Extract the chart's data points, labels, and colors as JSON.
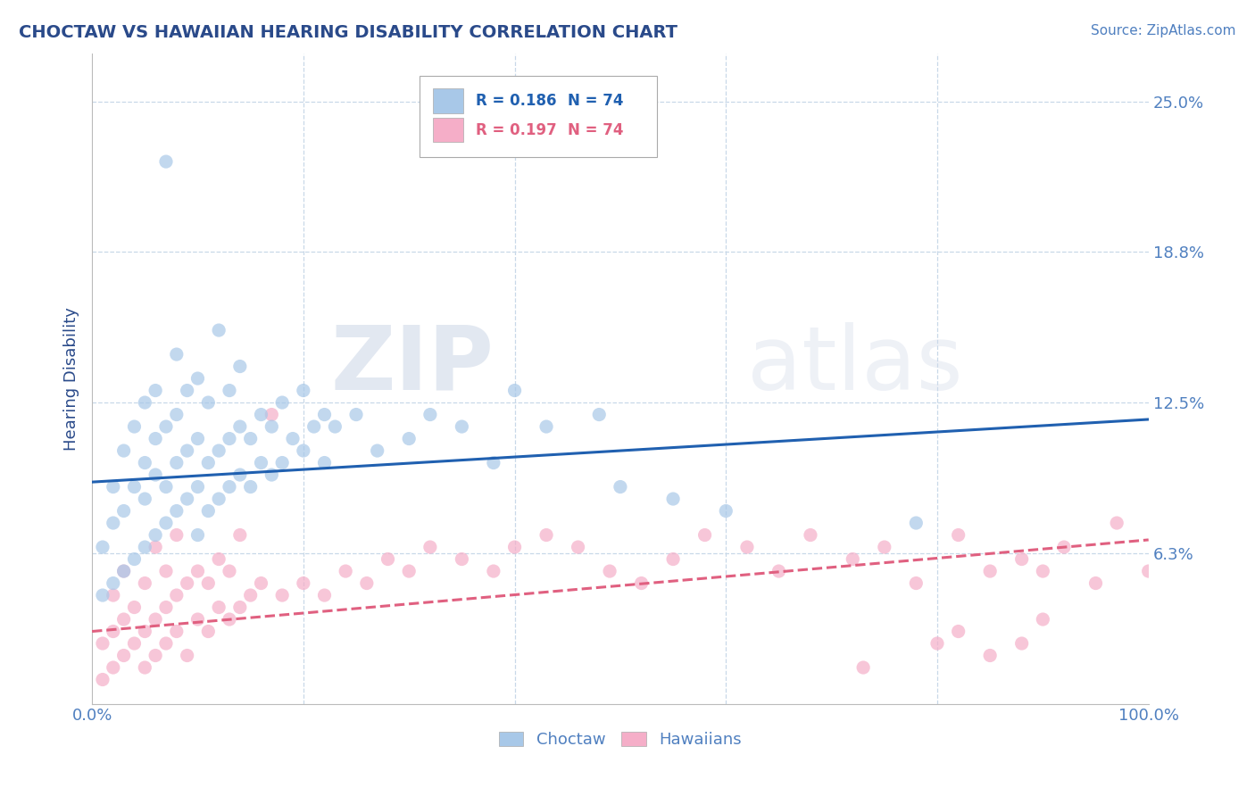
{
  "title": "CHOCTAW VS HAWAIIAN HEARING DISABILITY CORRELATION CHART",
  "source_text": "Source: ZipAtlas.com",
  "ylabel": "Hearing Disability",
  "xlim": [
    0.0,
    100.0
  ],
  "ylim": [
    0.0,
    27.0
  ],
  "ytick_positions": [
    6.25,
    12.5,
    18.75,
    25.0
  ],
  "ytick_labels": [
    "6.3%",
    "12.5%",
    "18.8%",
    "25.0%"
  ],
  "xtick_positions": [
    0.0,
    100.0
  ],
  "xtick_labels": [
    "0.0%",
    "100.0%"
  ],
  "choctaw_color": "#a8c8e8",
  "hawaiian_color": "#f5aec8",
  "choctaw_line_color": "#2060b0",
  "hawaiian_line_color": "#e06080",
  "background_color": "#ffffff",
  "grid_color": "#c8d8e8",
  "title_color": "#2a4a8a",
  "tick_label_color": "#5080c0",
  "watermark_zip": "ZIP",
  "watermark_atlas": "atlas",
  "legend_r_choctaw": "R = 0.186",
  "legend_n_choctaw": "N = 74",
  "legend_r_hawaiian": "R = 0.197",
  "legend_n_hawaiian": "N = 74",
  "choctaw_trend_y_start": 9.2,
  "choctaw_trend_y_end": 11.8,
  "hawaiian_trend_y_start": 3.0,
  "hawaiian_trend_y_end": 6.8,
  "choctaw_scatter_x": [
    1,
    1,
    2,
    2,
    2,
    3,
    3,
    3,
    4,
    4,
    4,
    5,
    5,
    5,
    5,
    6,
    6,
    6,
    6,
    7,
    7,
    7,
    7,
    8,
    8,
    8,
    8,
    9,
    9,
    9,
    10,
    10,
    10,
    10,
    11,
    11,
    11,
    12,
    12,
    12,
    13,
    13,
    13,
    14,
    14,
    14,
    15,
    15,
    16,
    16,
    17,
    17,
    18,
    18,
    19,
    20,
    20,
    21,
    22,
    22,
    23,
    25,
    27,
    30,
    32,
    35,
    38,
    40,
    43,
    48,
    50,
    55,
    60,
    78
  ],
  "choctaw_scatter_y": [
    4.5,
    6.5,
    5.0,
    7.5,
    9.0,
    5.5,
    8.0,
    10.5,
    6.0,
    9.0,
    11.5,
    6.5,
    8.5,
    10.0,
    12.5,
    7.0,
    9.5,
    11.0,
    13.0,
    7.5,
    9.0,
    11.5,
    22.5,
    8.0,
    10.0,
    12.0,
    14.5,
    8.5,
    10.5,
    13.0,
    7.0,
    9.0,
    11.0,
    13.5,
    8.0,
    10.0,
    12.5,
    8.5,
    10.5,
    15.5,
    9.0,
    11.0,
    13.0,
    9.5,
    11.5,
    14.0,
    9.0,
    11.0,
    10.0,
    12.0,
    9.5,
    11.5,
    10.0,
    12.5,
    11.0,
    10.5,
    13.0,
    11.5,
    10.0,
    12.0,
    11.5,
    12.0,
    10.5,
    11.0,
    12.0,
    11.5,
    10.0,
    13.0,
    11.5,
    12.0,
    9.0,
    8.5,
    8.0,
    7.5
  ],
  "hawaiian_scatter_x": [
    1,
    1,
    2,
    2,
    2,
    3,
    3,
    3,
    4,
    4,
    5,
    5,
    5,
    6,
    6,
    6,
    7,
    7,
    7,
    8,
    8,
    8,
    9,
    9,
    10,
    10,
    11,
    11,
    12,
    12,
    13,
    13,
    14,
    14,
    15,
    16,
    17,
    18,
    20,
    22,
    24,
    26,
    28,
    30,
    32,
    35,
    38,
    40,
    43,
    46,
    49,
    52,
    55,
    58,
    62,
    65,
    68,
    72,
    75,
    78,
    82,
    85,
    88,
    90,
    92,
    95,
    97,
    100,
    73,
    80,
    82,
    85,
    88,
    90
  ],
  "hawaiian_scatter_y": [
    1.0,
    2.5,
    1.5,
    3.0,
    4.5,
    2.0,
    3.5,
    5.5,
    2.5,
    4.0,
    1.5,
    3.0,
    5.0,
    2.0,
    3.5,
    6.5,
    2.5,
    4.0,
    5.5,
    3.0,
    4.5,
    7.0,
    2.0,
    5.0,
    3.5,
    5.5,
    3.0,
    5.0,
    4.0,
    6.0,
    3.5,
    5.5,
    4.0,
    7.0,
    4.5,
    5.0,
    12.0,
    4.5,
    5.0,
    4.5,
    5.5,
    5.0,
    6.0,
    5.5,
    6.5,
    6.0,
    5.5,
    6.5,
    7.0,
    6.5,
    5.5,
    5.0,
    6.0,
    7.0,
    6.5,
    5.5,
    7.0,
    6.0,
    6.5,
    5.0,
    7.0,
    5.5,
    6.0,
    5.5,
    6.5,
    5.0,
    7.5,
    5.5,
    1.5,
    2.5,
    3.0,
    2.0,
    2.5,
    3.5
  ]
}
